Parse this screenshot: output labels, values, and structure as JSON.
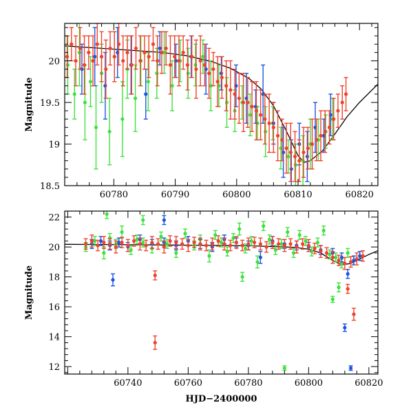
{
  "colors": {
    "green": "#3de23d",
    "blue": "#1a55e0",
    "red": "#f0402a",
    "model": "#000000",
    "frame": "#000000"
  },
  "chart_data": [
    {
      "type": "scatter",
      "title": "",
      "xlabel": "",
      "ylabel": "Magnitude",
      "xlim": [
        60772,
        60823
      ],
      "ylim": [
        20.45,
        18.5
      ],
      "y_inverted": true,
      "grid": false,
      "xticks": [
        60780,
        60790,
        60800,
        60810,
        60820
      ],
      "yticks": [
        18.5,
        19,
        19.5,
        20
      ],
      "xtick_labels": [
        "60780",
        "60790",
        "60800",
        "60810",
        "60820"
      ],
      "ytick_labels": [
        "18.5",
        "19",
        "19.5",
        "20"
      ],
      "series": [
        {
          "color": "green",
          "values_note": "",
          "x": [
            60772.5,
            60773.6,
            60774.4,
            60775.3,
            60776.2,
            60777.1,
            60778.0,
            60779.3,
            60780.1,
            60781.4,
            60782.2,
            60783.5,
            60784.4,
            60785.6,
            60787.0,
            60788.2,
            60789.5,
            60790.8,
            60792.1,
            60793.3,
            60794.5,
            60795.8,
            60797.1,
            60798.4,
            60799.7,
            60800.9,
            60802.2,
            60803.4,
            60804.7,
            60805.9,
            60807.2,
            60808.4,
            60809.6,
            60810.8,
            60812.0,
            60813.3,
            60814.5,
            60815.6
          ],
          "y": [
            19.95,
            19.6,
            20.1,
            19.5,
            19.75,
            19.2,
            19.85,
            19.15,
            20.05,
            19.3,
            19.9,
            19.55,
            20.0,
            19.75,
            19.85,
            20.1,
            19.7,
            20.0,
            19.85,
            19.95,
            20.05,
            19.7,
            19.7,
            19.5,
            19.4,
            19.5,
            19.35,
            19.25,
            19.15,
            19.25,
            18.95,
            18.85,
            18.75,
            18.8,
            19.0,
            19.05,
            19.15,
            19.3
          ],
          "err": [
            0.35,
            0.3,
            0.4,
            0.45,
            0.3,
            0.5,
            0.35,
            0.4,
            0.3,
            0.45,
            0.35,
            0.4,
            0.3,
            0.35,
            0.3,
            0.25,
            0.3,
            0.25,
            0.3,
            0.25,
            0.2,
            0.3,
            0.25,
            0.3,
            0.25,
            0.2,
            0.25,
            0.2,
            0.3,
            0.2,
            0.25,
            0.2,
            0.25,
            0.3,
            0.3,
            0.25,
            0.2,
            0.25
          ]
        },
        {
          "color": "blue",
          "values_note": "",
          "x": [
            60774.8,
            60776.9,
            60778.6,
            60780.6,
            60782.8,
            60785.2,
            60787.5,
            60790.1,
            60792.6,
            60795.0,
            60797.5,
            60799.9,
            60801.6,
            60803.1,
            60804.3,
            60806.0,
            60807.6,
            60808.9,
            60810.2,
            60811.5,
            60812.8,
            60814.2,
            60815.3
          ],
          "y": [
            19.9,
            20.05,
            19.7,
            20.1,
            19.95,
            19.6,
            20.15,
            20.0,
            20.05,
            19.9,
            19.85,
            19.7,
            19.55,
            19.45,
            19.6,
            19.25,
            18.9,
            18.7,
            19.0,
            18.85,
            19.2,
            19.1,
            19.35
          ],
          "err": [
            0.3,
            0.35,
            0.4,
            0.3,
            0.35,
            0.3,
            0.2,
            0.2,
            0.25,
            0.3,
            0.2,
            0.25,
            0.3,
            0.2,
            0.35,
            0.25,
            0.3,
            0.35,
            0.25,
            0.3,
            0.3,
            0.2,
            0.25
          ]
        },
        {
          "color": "red",
          "values_note": "",
          "x": [
            60772.4,
            60773.1,
            60773.8,
            60774.5,
            60775.2,
            60775.9,
            60776.6,
            60777.3,
            60778.0,
            60778.7,
            60779.4,
            60780.1,
            60780.8,
            60781.5,
            60782.2,
            60782.9,
            60783.6,
            60784.3,
            60785.0,
            60785.7,
            60786.4,
            60787.1,
            60787.8,
            60788.5,
            60789.2,
            60789.9,
            60790.6,
            60791.3,
            60792.0,
            60792.7,
            60793.4,
            60794.1,
            60794.8,
            60795.5,
            60796.2,
            60796.9,
            60797.6,
            60798.3,
            60799.0,
            60799.7,
            60800.4,
            60801.1,
            60801.8,
            60802.5,
            60803.2,
            60803.9,
            60804.6,
            60805.3,
            60806.0,
            60806.7,
            60807.4,
            60808.1,
            60808.8,
            60809.5,
            60810.2,
            60810.9,
            60811.6,
            60812.3,
            60813.0,
            60813.7,
            60814.4,
            60815.1,
            60815.8,
            60816.5,
            60817.2,
            60817.8
          ],
          "y": [
            20.05,
            20.2,
            20.0,
            20.15,
            19.95,
            20.1,
            20.0,
            20.2,
            20.05,
            19.9,
            20.15,
            20.05,
            20.2,
            20.0,
            20.1,
            19.95,
            20.15,
            20.0,
            20.1,
            20.05,
            20.2,
            20.0,
            20.1,
            20.15,
            19.95,
            20.05,
            20.0,
            20.1,
            19.95,
            20.05,
            19.9,
            20.0,
            19.95,
            19.85,
            19.9,
            19.75,
            19.8,
            19.7,
            19.65,
            19.6,
            19.55,
            19.5,
            19.5,
            19.45,
            19.4,
            19.35,
            19.3,
            19.25,
            19.2,
            19.1,
            19.05,
            18.95,
            18.9,
            18.85,
            18.8,
            18.9,
            18.95,
            19.0,
            19.05,
            19.1,
            19.15,
            19.2,
            19.3,
            19.4,
            19.5,
            19.6
          ],
          "err": [
            0.25,
            0.2,
            0.3,
            0.25,
            0.35,
            0.2,
            0.3,
            0.25,
            0.3,
            0.35,
            0.2,
            0.3,
            0.25,
            0.3,
            0.2,
            0.35,
            0.25,
            0.3,
            0.2,
            0.25,
            0.2,
            0.3,
            0.25,
            0.2,
            0.35,
            0.25,
            0.3,
            0.2,
            0.3,
            0.25,
            0.35,
            0.3,
            0.25,
            0.3,
            0.2,
            0.3,
            0.25,
            0.3,
            0.35,
            0.3,
            0.3,
            0.35,
            0.3,
            0.3,
            0.35,
            0.3,
            0.3,
            0.35,
            0.3,
            0.3,
            0.25,
            0.3,
            0.35,
            0.3,
            0.25,
            0.3,
            0.25,
            0.3,
            0.25,
            0.3,
            0.25,
            0.2,
            0.25,
            0.2,
            0.2,
            0.2
          ]
        }
      ],
      "model_curve": {
        "x": [
          60772,
          60776,
          60780,
          60784,
          60788,
          60792,
          60796,
          60799,
          60802,
          60804,
          60806,
          60808,
          60810,
          60811,
          60812,
          60814,
          60816,
          60818,
          60820,
          60823
        ],
        "y": [
          20.18,
          20.16,
          20.14,
          20.12,
          20.1,
          20.06,
          19.99,
          19.91,
          19.79,
          19.66,
          19.46,
          19.17,
          18.86,
          18.78,
          18.8,
          18.92,
          19.12,
          19.33,
          19.5,
          19.72
        ]
      }
    },
    {
      "type": "scatter",
      "title": "",
      "xlabel": "HJD−2400000",
      "ylabel": "Magnitude",
      "xlim": [
        60719,
        60823
      ],
      "ylim": [
        22.4,
        11.5
      ],
      "y_inverted": true,
      "grid": false,
      "xticks": [
        60740,
        60760,
        60780,
        60800,
        60820
      ],
      "yticks": [
        12,
        14,
        16,
        18,
        20,
        22
      ],
      "xtick_labels": [
        "60740",
        "60760",
        "60780",
        "60800",
        "60820"
      ],
      "ytick_labels": [
        "12",
        "14",
        "16",
        "18",
        "20",
        "22"
      ],
      "series": [
        {
          "color": "green",
          "values_note": "",
          "x": [
            60726,
            60729,
            60732,
            60734,
            60736,
            60738,
            60741,
            60743,
            60745,
            60748,
            60751,
            60753,
            60756,
            60759,
            60762,
            60764,
            60767,
            60769,
            60771,
            60773,
            60775,
            60777,
            60779,
            60781,
            60783,
            60785,
            60787,
            60789,
            60791,
            60793,
            60795,
            60797,
            60799,
            60801,
            60803,
            60805,
            60807,
            60809,
            60811,
            60813,
            60815,
            60817,
            60792,
            60808,
            60810,
            60778,
            60745,
            60733
          ],
          "y": [
            20.0,
            20.4,
            19.6,
            20.6,
            20.2,
            21.0,
            19.8,
            20.5,
            20.3,
            19.9,
            20.7,
            20.2,
            19.6,
            20.9,
            20.1,
            20.5,
            19.4,
            20.8,
            20.3,
            19.7,
            20.6,
            21.2,
            19.9,
            20.4,
            19.0,
            21.4,
            20.5,
            19.8,
            20.2,
            21.0,
            19.6,
            20.8,
            20.4,
            19.7,
            20.3,
            21.1,
            19.5,
            19.3,
            18.9,
            19.6,
            19.1,
            19.4,
            11.9,
            16.5,
            17.3,
            18.0,
            21.8,
            22.2
          ],
          "err": [
            0.3,
            0.3,
            0.4,
            0.3,
            0.3,
            0.4,
            0.3,
            0.3,
            0.3,
            0.3,
            0.3,
            0.3,
            0.3,
            0.3,
            0.3,
            0.3,
            0.4,
            0.3,
            0.3,
            0.3,
            0.3,
            0.4,
            0.3,
            0.3,
            0.4,
            0.3,
            0.3,
            0.3,
            0.3,
            0.3,
            0.3,
            0.3,
            0.3,
            0.3,
            0.3,
            0.3,
            0.3,
            0.3,
            0.3,
            0.3,
            0.3,
            0.3,
            0.15,
            0.2,
            0.3,
            0.3,
            0.3,
            0.3
          ]
        },
        {
          "color": "blue",
          "values_note": "",
          "x": [
            60728,
            60731,
            60734,
            60737,
            60740,
            60744,
            60748,
            60752,
            60756,
            60760,
            60764,
            60768,
            60772,
            60776,
            60780,
            60784,
            60788,
            60792,
            60796,
            60800,
            60804,
            60808,
            60811,
            60813,
            60815,
            60817,
            60735,
            60812,
            60814,
            60752
          ],
          "y": [
            20.2,
            20.4,
            20.1,
            20.3,
            20.0,
            20.5,
            20.2,
            20.3,
            20.1,
            20.4,
            20.2,
            20.0,
            20.5,
            20.3,
            20.1,
            19.3,
            20.4,
            20.2,
            20.1,
            20.0,
            19.8,
            19.6,
            19.3,
            18.2,
            19.1,
            19.4,
            17.8,
            14.6,
            11.9,
            21.8
          ],
          "err": [
            0.3,
            0.3,
            0.3,
            0.3,
            0.3,
            0.3,
            0.3,
            0.3,
            0.3,
            0.3,
            0.3,
            0.3,
            0.3,
            0.3,
            0.3,
            0.4,
            0.3,
            0.3,
            0.3,
            0.3,
            0.3,
            0.3,
            0.3,
            0.3,
            0.3,
            0.3,
            0.4,
            0.25,
            0.15,
            0.3
          ]
        },
        {
          "color": "red",
          "values_note": "",
          "x": [
            60726,
            60728,
            60730,
            60732,
            60734,
            60736,
            60738,
            60740,
            60742,
            60744,
            60746,
            60748,
            60750,
            60752,
            60754,
            60756,
            60758,
            60760,
            60762,
            60764,
            60766,
            60768,
            60770,
            60772,
            60774,
            60776,
            60778,
            60780,
            60782,
            60784,
            60786,
            60788,
            60790,
            60792,
            60794,
            60796,
            60798,
            60800,
            60802,
            60804,
            60806,
            60808,
            60810,
            60812,
            60814,
            60816,
            60818,
            60749,
            60749,
            60815,
            60813
          ],
          "y": [
            20.2,
            20.4,
            20.1,
            20.3,
            20.2,
            20.0,
            20.3,
            20.1,
            20.4,
            20.2,
            20.1,
            20.3,
            20.2,
            20.0,
            20.4,
            20.3,
            20.2,
            20.1,
            20.3,
            20.2,
            20.1,
            20.2,
            20.4,
            20.2,
            20.1,
            20.3,
            20.1,
            20.2,
            20.3,
            20.2,
            20.0,
            20.3,
            20.2,
            20.1,
            20.2,
            20.0,
            20.2,
            20.1,
            19.9,
            19.7,
            19.6,
            19.3,
            19.1,
            18.9,
            19.0,
            19.2,
            19.4,
            13.6,
            18.1,
            15.5,
            17.2
          ],
          "err": [
            0.35,
            0.4,
            0.35,
            0.4,
            0.35,
            0.4,
            0.35,
            0.4,
            0.35,
            0.4,
            0.35,
            0.4,
            0.35,
            0.4,
            0.35,
            0.4,
            0.35,
            0.4,
            0.35,
            0.4,
            0.35,
            0.4,
            0.35,
            0.4,
            0.35,
            0.4,
            0.35,
            0.4,
            0.35,
            0.4,
            0.35,
            0.4,
            0.35,
            0.4,
            0.35,
            0.4,
            0.35,
            0.4,
            0.35,
            0.4,
            0.35,
            0.4,
            0.35,
            0.4,
            0.35,
            0.4,
            0.35,
            0.45,
            0.3,
            0.4,
            0.3
          ]
        }
      ],
      "model_curve": {
        "x": [
          60719,
          60740,
          60760,
          60780,
          60795,
          60800,
          60804,
          60808,
          60811,
          60814,
          60817,
          60820,
          60823
        ],
        "y": [
          20.18,
          20.15,
          20.12,
          20.08,
          19.98,
          19.85,
          19.6,
          19.1,
          18.8,
          18.9,
          19.2,
          19.5,
          19.75
        ]
      }
    }
  ]
}
